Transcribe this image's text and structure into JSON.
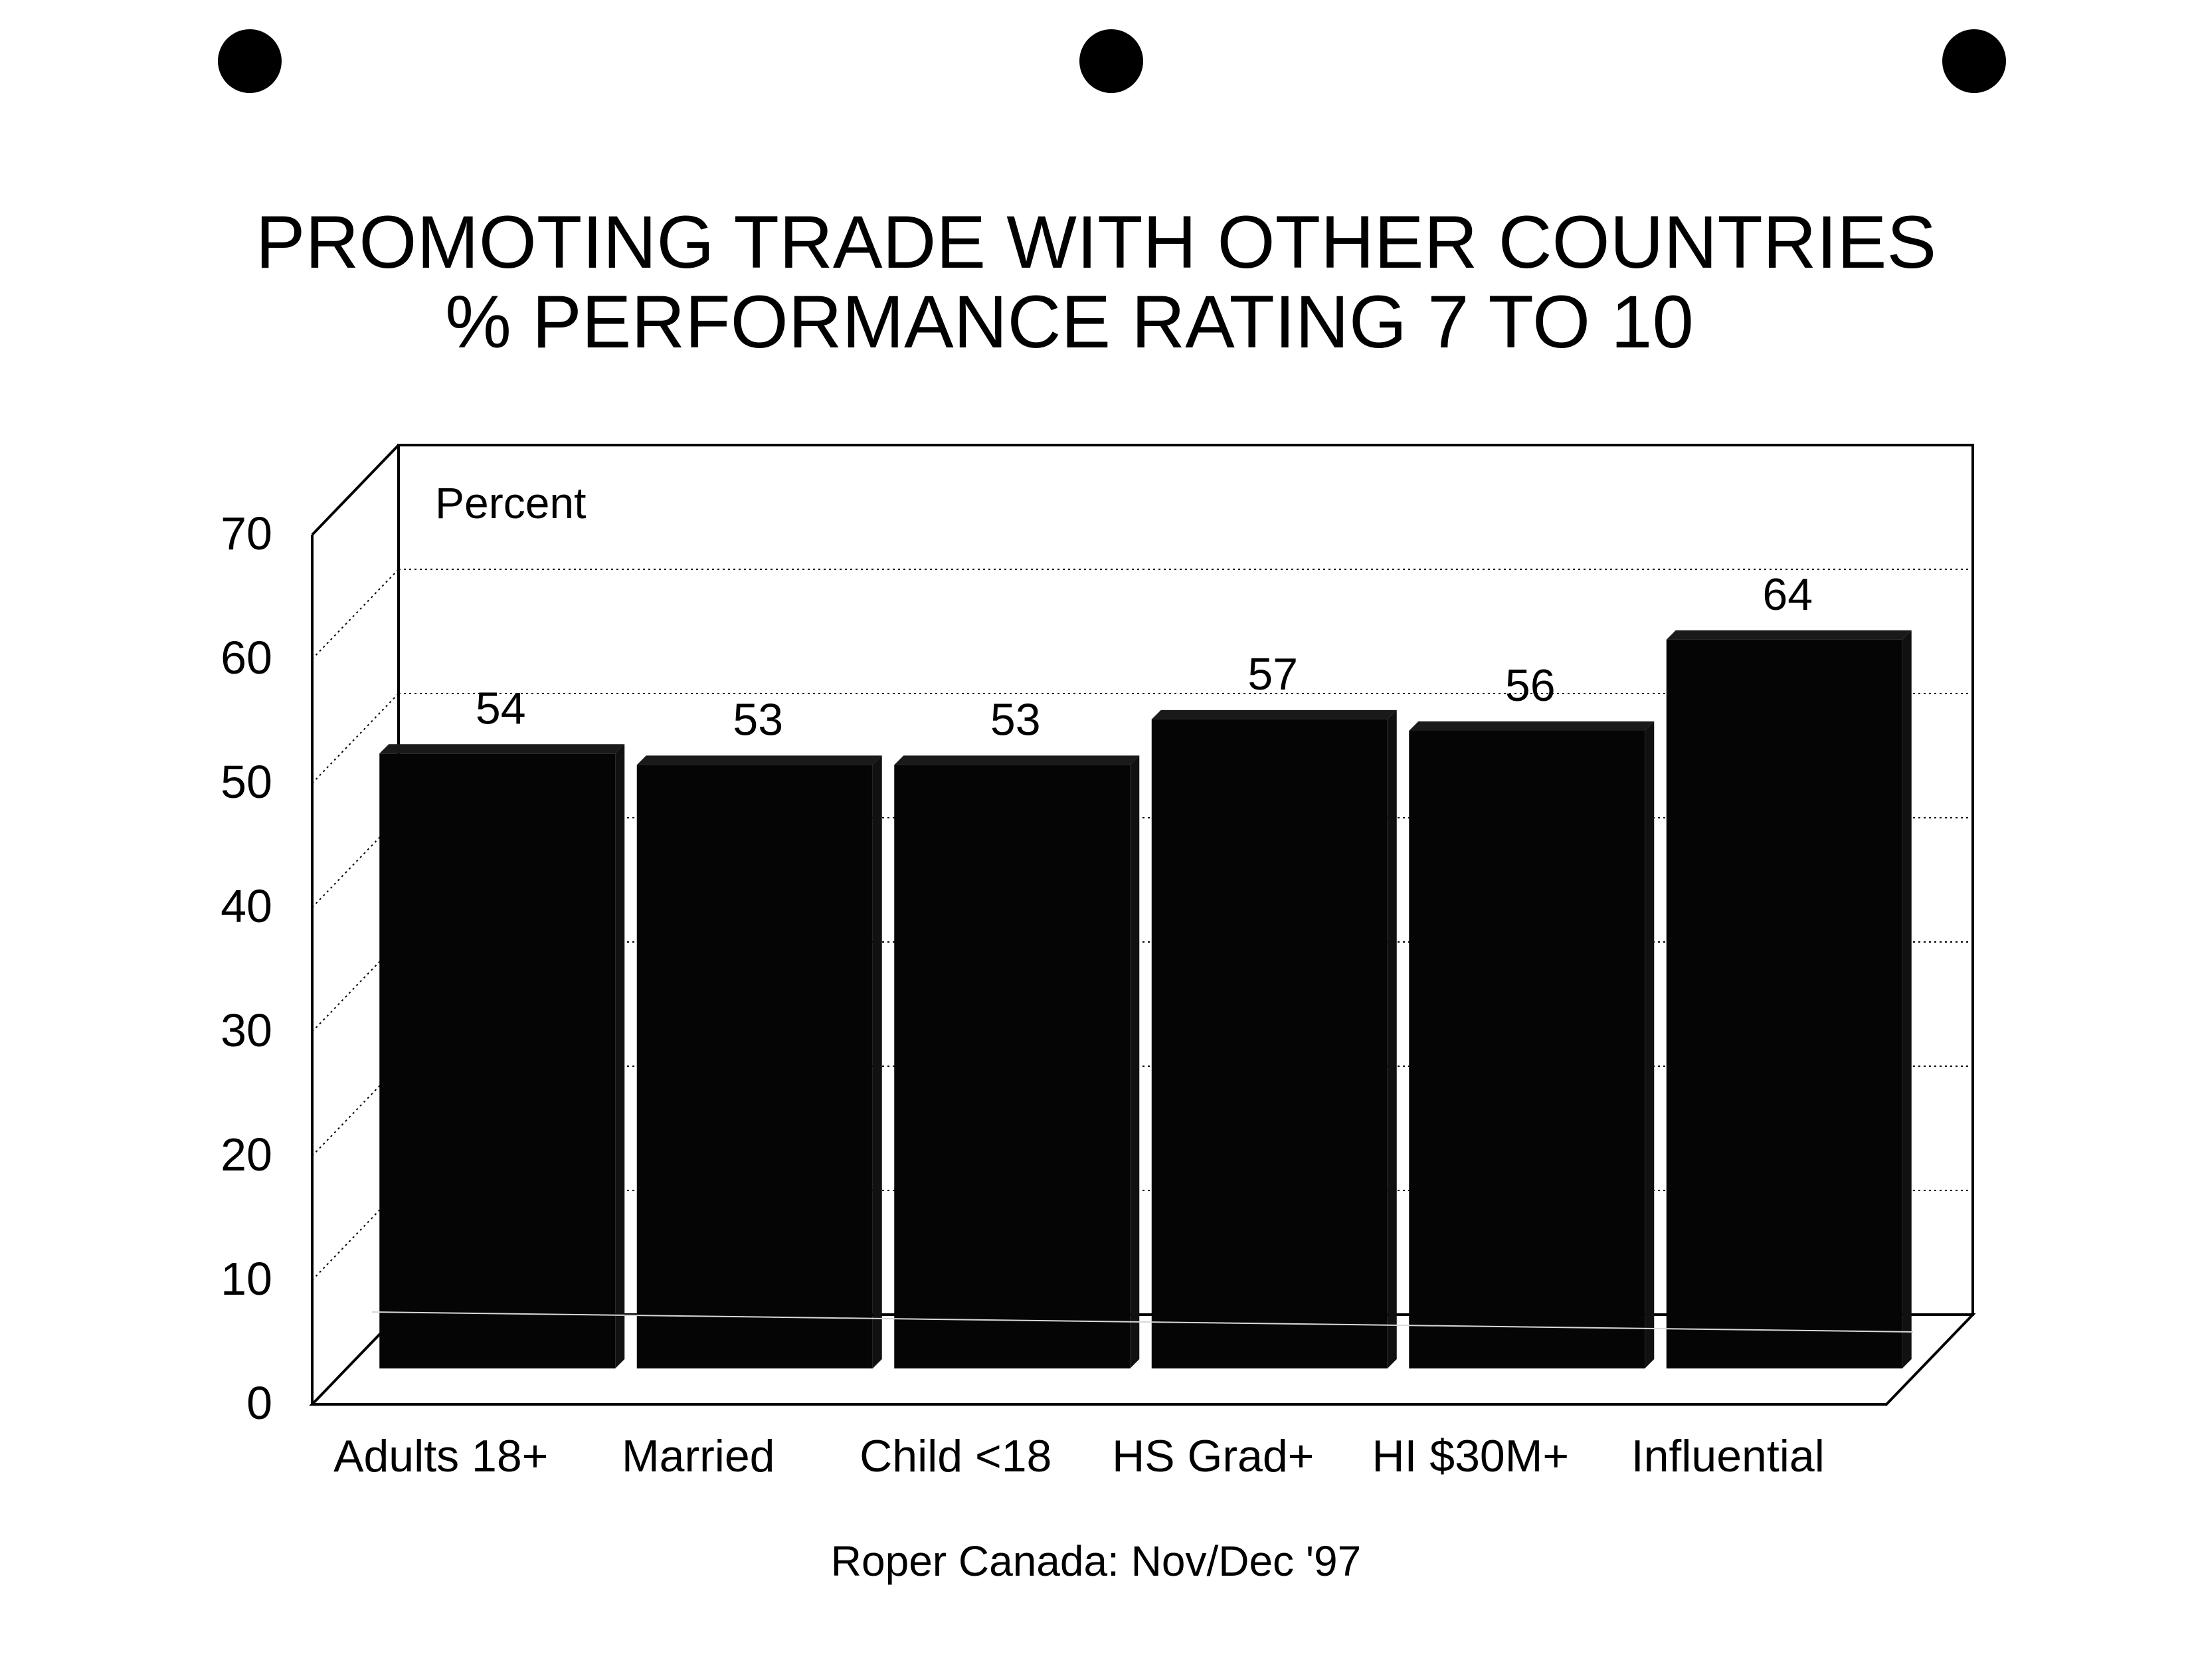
{
  "chart_data": {
    "type": "bar",
    "title": "PROMOTING TRADE WITH OTHER COUNTRIES",
    "subtitle": "% PERFORMANCE RATING  7 TO 10",
    "ylabel": "Percent",
    "xlabel": "",
    "categories": [
      "Adults 18+",
      "Married",
      "Child <18",
      "HS Grad+",
      "HI $30M+",
      "Influential"
    ],
    "values": [
      54,
      53,
      53,
      57,
      56,
      64
    ],
    "data_labels": [
      "54",
      "53",
      "53",
      "57",
      "56",
      "64"
    ],
    "ylim": [
      0,
      70
    ],
    "yticks": [
      0,
      10,
      20,
      30,
      40,
      50,
      60,
      70
    ],
    "grid": true,
    "style": "3d",
    "bar_color": "#050505"
  },
  "source": "Roper Canada: Nov/Dec '97"
}
